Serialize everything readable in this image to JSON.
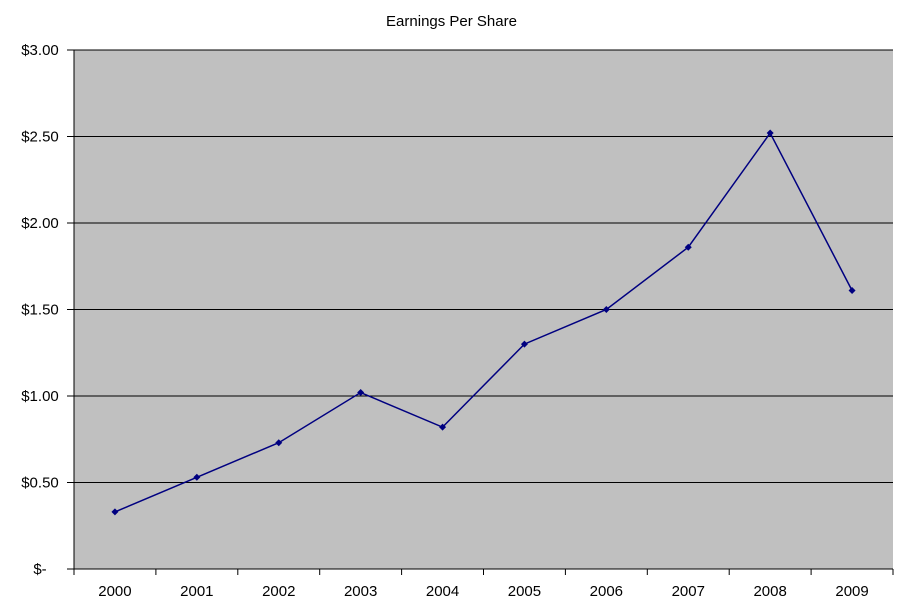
{
  "chart_data": {
    "type": "line",
    "title": "Earnings Per Share",
    "categories": [
      "2000",
      "2001",
      "2002",
      "2003",
      "2004",
      "2005",
      "2006",
      "2007",
      "2008",
      "2009"
    ],
    "values": [
      0.33,
      0.53,
      0.73,
      1.02,
      0.82,
      1.3,
      1.5,
      1.86,
      2.52,
      1.61
    ],
    "xlabel": "",
    "ylabel": "",
    "ylim": [
      0,
      3
    ],
    "y_tick_step": 0.5,
    "y_tick_labels": [
      "$-",
      "$0.50",
      "$1.00",
      "$1.50",
      "$2.00",
      "$2.50",
      "$3.00"
    ],
    "grid": true,
    "legend": false,
    "marker": "diamond",
    "colors": {
      "line": "#000080",
      "marker": "#000080",
      "plot_background": "#C0C0C0",
      "gridline": "#000000",
      "axis": "#000000",
      "chart_background": "#FFFFFF",
      "text": "#000000"
    }
  }
}
